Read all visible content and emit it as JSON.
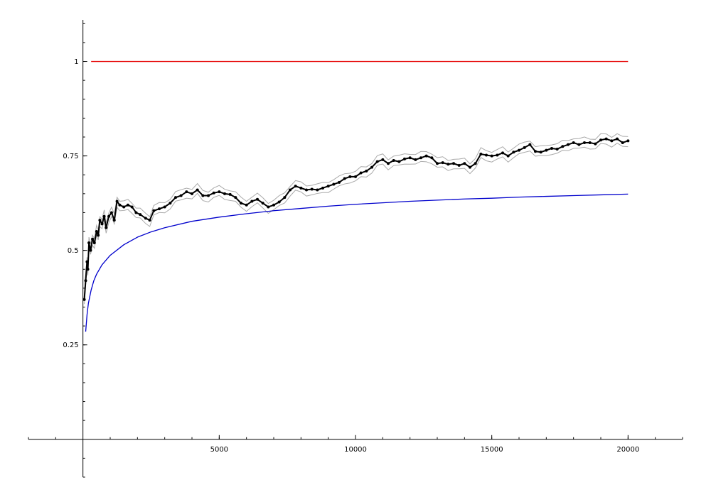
{
  "chart_data": {
    "type": "line",
    "title": "",
    "xlabel": "",
    "ylabel": "",
    "xlim": [
      -2000,
      22000
    ],
    "ylim": [
      -0.1,
      1.11
    ],
    "grid": false,
    "legend": "none",
    "x_ticks": [
      {
        "value": 5000,
        "label": "5000"
      },
      {
        "value": 10000,
        "label": "10000"
      },
      {
        "value": 15000,
        "label": "15000"
      },
      {
        "value": 20000,
        "label": "20000"
      }
    ],
    "y_ticks": [
      {
        "value": 0.25,
        "label": "0.25"
      },
      {
        "value": 0.5,
        "label": "0.5"
      },
      {
        "value": 0.75,
        "label": "0.75"
      },
      {
        "value": 1,
        "label": "1"
      }
    ],
    "x_minor_step": 1000,
    "y_minor_step": 0.05,
    "series": [
      {
        "color": "#e60000",
        "style": "line",
        "points": [
          [
            300,
            1.0
          ],
          [
            20000,
            1.0
          ]
        ]
      },
      {
        "color": "#0000cc",
        "style": "line",
        "points": [
          [
            100,
            0.285
          ],
          [
            150,
            0.33
          ],
          [
            200,
            0.36
          ],
          [
            300,
            0.395
          ],
          [
            400,
            0.42
          ],
          [
            500,
            0.437
          ],
          [
            700,
            0.462
          ],
          [
            1000,
            0.487
          ],
          [
            1500,
            0.515
          ],
          [
            2000,
            0.535
          ],
          [
            2500,
            0.549
          ],
          [
            3000,
            0.56
          ],
          [
            4000,
            0.577
          ],
          [
            5000,
            0.588
          ],
          [
            6000,
            0.597
          ],
          [
            7000,
            0.605
          ],
          [
            8000,
            0.611
          ],
          [
            9000,
            0.617
          ],
          [
            10000,
            0.622
          ],
          [
            11000,
            0.626
          ],
          [
            12000,
            0.63
          ],
          [
            13000,
            0.633
          ],
          [
            14000,
            0.636
          ],
          [
            15000,
            0.638
          ],
          [
            16000,
            0.641
          ],
          [
            17000,
            0.643
          ],
          [
            18000,
            0.645
          ],
          [
            19000,
            0.647
          ],
          [
            20000,
            0.649
          ]
        ]
      },
      {
        "color": "#000000",
        "style": "markers",
        "band_color": "#aaaaaa",
        "band_offset": 0.013,
        "points": [
          [
            50,
            0.37
          ],
          [
            100,
            0.42
          ],
          [
            150,
            0.47
          ],
          [
            180,
            0.45
          ],
          [
            220,
            0.52
          ],
          [
            280,
            0.5
          ],
          [
            350,
            0.53
          ],
          [
            420,
            0.52
          ],
          [
            500,
            0.55
          ],
          [
            560,
            0.54
          ],
          [
            620,
            0.58
          ],
          [
            700,
            0.57
          ],
          [
            780,
            0.59
          ],
          [
            850,
            0.56
          ],
          [
            950,
            0.59
          ],
          [
            1050,
            0.6
          ],
          [
            1150,
            0.58
          ],
          [
            1250,
            0.63
          ],
          [
            1350,
            0.62
          ],
          [
            1500,
            0.615
          ],
          [
            1650,
            0.62
          ],
          [
            1800,
            0.615
          ],
          [
            1950,
            0.6
          ],
          [
            2100,
            0.595
          ],
          [
            2300,
            0.585
          ],
          [
            2450,
            0.58
          ],
          [
            2600,
            0.605
          ],
          [
            2800,
            0.61
          ],
          [
            3000,
            0.615
          ],
          [
            3200,
            0.625
          ],
          [
            3400,
            0.64
          ],
          [
            3600,
            0.645
          ],
          [
            3800,
            0.655
          ],
          [
            4000,
            0.65
          ],
          [
            4200,
            0.66
          ],
          [
            4400,
            0.645
          ],
          [
            4600,
            0.645
          ],
          [
            4800,
            0.652
          ],
          [
            5000,
            0.655
          ],
          [
            5200,
            0.65
          ],
          [
            5400,
            0.648
          ],
          [
            5600,
            0.64
          ],
          [
            5800,
            0.625
          ],
          [
            6000,
            0.62
          ],
          [
            6200,
            0.63
          ],
          [
            6400,
            0.635
          ],
          [
            6600,
            0.625
          ],
          [
            6800,
            0.615
          ],
          [
            7000,
            0.62
          ],
          [
            7200,
            0.628
          ],
          [
            7400,
            0.64
          ],
          [
            7600,
            0.66
          ],
          [
            7800,
            0.67
          ],
          [
            8000,
            0.665
          ],
          [
            8200,
            0.66
          ],
          [
            8400,
            0.662
          ],
          [
            8600,
            0.66
          ],
          [
            8800,
            0.665
          ],
          [
            9000,
            0.67
          ],
          [
            9200,
            0.675
          ],
          [
            9400,
            0.68
          ],
          [
            9600,
            0.69
          ],
          [
            9800,
            0.695
          ],
          [
            10000,
            0.695
          ],
          [
            10200,
            0.705
          ],
          [
            10400,
            0.71
          ],
          [
            10600,
            0.72
          ],
          [
            10800,
            0.735
          ],
          [
            11000,
            0.74
          ],
          [
            11200,
            0.73
          ],
          [
            11400,
            0.738
          ],
          [
            11600,
            0.735
          ],
          [
            11800,
            0.742
          ],
          [
            12000,
            0.745
          ],
          [
            12200,
            0.74
          ],
          [
            12400,
            0.745
          ],
          [
            12600,
            0.75
          ],
          [
            12800,
            0.745
          ],
          [
            13000,
            0.73
          ],
          [
            13200,
            0.732
          ],
          [
            13400,
            0.728
          ],
          [
            13600,
            0.73
          ],
          [
            13800,
            0.725
          ],
          [
            14000,
            0.73
          ],
          [
            14200,
            0.72
          ],
          [
            14400,
            0.73
          ],
          [
            14600,
            0.755
          ],
          [
            14800,
            0.752
          ],
          [
            15000,
            0.75
          ],
          [
            15200,
            0.752
          ],
          [
            15400,
            0.758
          ],
          [
            15600,
            0.75
          ],
          [
            15800,
            0.76
          ],
          [
            16000,
            0.765
          ],
          [
            16200,
            0.772
          ],
          [
            16400,
            0.78
          ],
          [
            16600,
            0.762
          ],
          [
            16800,
            0.76
          ],
          [
            17000,
            0.765
          ],
          [
            17200,
            0.77
          ],
          [
            17400,
            0.768
          ],
          [
            17600,
            0.775
          ],
          [
            17800,
            0.78
          ],
          [
            18000,
            0.785
          ],
          [
            18200,
            0.78
          ],
          [
            18400,
            0.785
          ],
          [
            18600,
            0.785
          ],
          [
            18800,
            0.782
          ],
          [
            19000,
            0.792
          ],
          [
            19200,
            0.795
          ],
          [
            19400,
            0.79
          ],
          [
            19600,
            0.795
          ],
          [
            19800,
            0.785
          ],
          [
            20000,
            0.79
          ]
        ]
      }
    ]
  }
}
